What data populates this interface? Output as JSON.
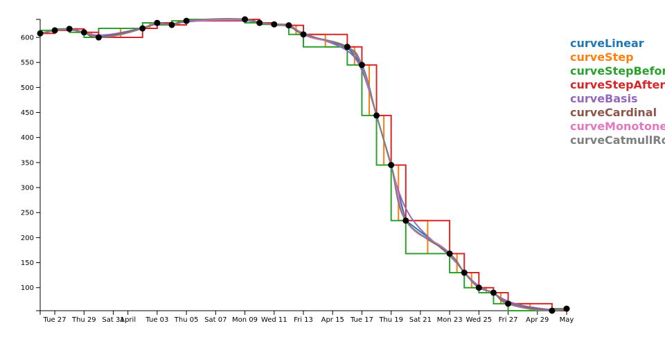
{
  "chart_data": {
    "type": "line",
    "x": [
      "Mar 26",
      "Mar 27",
      "Mar 28",
      "Mar 29",
      "Mar 30",
      "Apr 2",
      "Apr 3",
      "Apr 4",
      "Apr 5",
      "Apr 9",
      "Apr 10",
      "Apr 11",
      "Apr 12",
      "Apr 13",
      "Apr 16",
      "Apr 17",
      "Apr 18",
      "Apr 19",
      "Apr 20",
      "Apr 23",
      "Apr 24",
      "Apr 25",
      "Apr 26",
      "Apr 27",
      "Apr 30",
      "May 1"
    ],
    "values": [
      608,
      614,
      617,
      610,
      600,
      618,
      629,
      625,
      633,
      636,
      629,
      626,
      624,
      606,
      581,
      545,
      444,
      345,
      234,
      168,
      130,
      100,
      90,
      68,
      54,
      58
    ],
    "series": [
      {
        "name": "curveLinear",
        "color": "#1f77b4"
      },
      {
        "name": "curveStep",
        "color": "#ff7f0e"
      },
      {
        "name": "curveStepBefore",
        "color": "#2ca02c"
      },
      {
        "name": "curveStepAfter",
        "color": "#d62728"
      },
      {
        "name": "curveBasis",
        "color": "#9467bd"
      },
      {
        "name": "curveCardinal",
        "color": "#8c564b"
      },
      {
        "name": "curveMonotoneX",
        "color": "#e377c2"
      },
      {
        "name": "curveCatmullRom",
        "color": "#7f7f7f"
      }
    ],
    "point_color": "#000000",
    "xlim": [
      "Mar 26",
      "May 1"
    ],
    "xticks": [
      {
        "value": "Mar 27",
        "label": "Tue 27"
      },
      {
        "value": "Mar 29",
        "label": "Thu 29"
      },
      {
        "value": "Mar 31",
        "label": "Sat 31"
      },
      {
        "value": "Apr 1",
        "label": "April"
      },
      {
        "value": "Apr 3",
        "label": "Tue 03"
      },
      {
        "value": "Apr 5",
        "label": "Thu 05"
      },
      {
        "value": "Apr 7",
        "label": "Sat 07"
      },
      {
        "value": "Apr 9",
        "label": "Mon 09"
      },
      {
        "value": "Apr 11",
        "label": "Wed 11"
      },
      {
        "value": "Apr 13",
        "label": "Fri 13"
      },
      {
        "value": "Apr 15",
        "label": "Apr 15"
      },
      {
        "value": "Apr 17",
        "label": "Tue 17"
      },
      {
        "value": "Apr 19",
        "label": "Thu 19"
      },
      {
        "value": "Apr 21",
        "label": "Sat 21"
      },
      {
        "value": "Apr 23",
        "label": "Mon 23"
      },
      {
        "value": "Apr 25",
        "label": "Wed 25"
      },
      {
        "value": "Apr 27",
        "label": "Fri 27"
      },
      {
        "value": "Apr 29",
        "label": "Apr 29"
      },
      {
        "value": "May 1",
        "label": "May"
      }
    ],
    "ylim": [
      54,
      636
    ],
    "yticks": [
      100,
      150,
      200,
      250,
      300,
      350,
      400,
      450,
      500,
      550,
      600
    ],
    "legend": "right"
  }
}
